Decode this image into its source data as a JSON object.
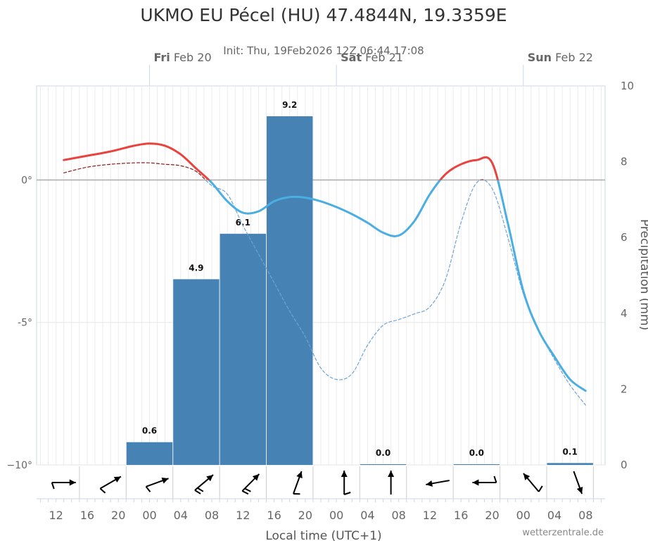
{
  "chart_data": {
    "type": "bar+line",
    "title": "UKMO EU Pécel (HU) 47.4844N, 19.3359E",
    "subtitle": "Init: Thu, 19Feb2026 12Z 06:44 17:08",
    "xlabel": "Local time (UTC+1)",
    "ylabel_right": "Precipitation (mm)",
    "credit": "wetterzentrale.de",
    "colors": {
      "warm": "#e8433f",
      "cold": "#4aaee3",
      "dew_warm": "#8b1a1a",
      "dew_cold": "#6fa3d3",
      "bars": "#4682b4",
      "zero_line": "#aaaaaa"
    },
    "day_labels": [
      {
        "day": "Fri",
        "date": "Feb 20",
        "hour": 0
      },
      {
        "day": "Sat",
        "date": "Feb 21",
        "hour": 24
      },
      {
        "day": "Sun",
        "date": "Feb 22",
        "hour": 48
      }
    ],
    "x_ticks": [
      {
        "hour": -12,
        "label": "12"
      },
      {
        "hour": -8,
        "label": "16"
      },
      {
        "hour": -4,
        "label": "20"
      },
      {
        "hour": 0,
        "label": "00"
      },
      {
        "hour": 4,
        "label": "04"
      },
      {
        "hour": 8,
        "label": "08"
      },
      {
        "hour": 12,
        "label": "12"
      },
      {
        "hour": 16,
        "label": "16"
      },
      {
        "hour": 20,
        "label": "20"
      },
      {
        "hour": 24,
        "label": "00"
      },
      {
        "hour": 28,
        "label": "04"
      },
      {
        "hour": 32,
        "label": "08"
      },
      {
        "hour": 36,
        "label": "12"
      },
      {
        "hour": 40,
        "label": "16"
      },
      {
        "hour": 44,
        "label": "20"
      },
      {
        "hour": 48,
        "label": "00"
      },
      {
        "hour": 52,
        "label": "04"
      },
      {
        "hour": 56,
        "label": "08"
      }
    ],
    "y_left": {
      "range": [
        -10,
        3.3
      ],
      "ticks": [
        {
          "value": 0,
          "label": "0°"
        },
        {
          "value": -5,
          "label": "-5°"
        },
        {
          "value": -10,
          "label": "−10°"
        }
      ]
    },
    "y_right": {
      "range": [
        0,
        10
      ],
      "ticks": [
        "0",
        "2",
        "4",
        "6",
        "8",
        "10"
      ]
    },
    "x_range_hours": [
      -14.5,
      58.5
    ],
    "temperature": {
      "hours": [
        -11,
        -8,
        -5,
        -2,
        0,
        2,
        4,
        6,
        8,
        10,
        12,
        14,
        16,
        18,
        20,
        22,
        24,
        26,
        28,
        30,
        32,
        34,
        36,
        38,
        40,
        42,
        44,
        46,
        48,
        50,
        52,
        54,
        56
      ],
      "values": [
        0.7,
        0.85,
        1.0,
        1.2,
        1.28,
        1.2,
        0.9,
        0.4,
        -0.1,
        -0.75,
        -1.15,
        -1.1,
        -0.75,
        -0.6,
        -0.62,
        -0.75,
        -0.95,
        -1.2,
        -1.5,
        -1.85,
        -1.95,
        -1.45,
        -0.5,
        0.2,
        0.55,
        0.7,
        0.6,
        -1.5,
        -3.9,
        -5.3,
        -6.2,
        -7.0,
        -7.4
      ]
    },
    "dewpoint": {
      "hours": [
        -11,
        -8,
        -5,
        -2,
        0,
        2,
        4,
        6,
        8,
        10,
        12,
        14,
        16,
        18,
        20,
        22,
        24,
        26,
        28,
        30,
        32,
        34,
        36,
        38,
        40,
        42,
        44,
        46,
        48,
        50,
        52,
        54,
        56
      ],
      "values": [
        0.25,
        0.45,
        0.55,
        0.6,
        0.6,
        0.55,
        0.5,
        0.3,
        -0.2,
        -0.5,
        -1.6,
        -2.6,
        -3.6,
        -4.6,
        -5.5,
        -6.6,
        -7.0,
        -6.8,
        -5.8,
        -5.1,
        -4.9,
        -4.7,
        -4.45,
        -3.5,
        -1.5,
        -0.1,
        -0.3,
        -2.0,
        -4.0,
        -5.3,
        -6.3,
        -7.2,
        -7.9
      ]
    },
    "precipitation": [
      {
        "start": -3,
        "end": 3,
        "value": 0.6,
        "label": "0.6"
      },
      {
        "start": 3,
        "end": 9,
        "value": 4.9,
        "label": "4.9"
      },
      {
        "start": 9,
        "end": 15,
        "value": 6.1,
        "label": "6.1"
      },
      {
        "start": 15,
        "end": 21,
        "value": 9.2,
        "label": "9.2"
      },
      {
        "start": 27,
        "end": 33,
        "value": 0.0,
        "label": "0.0"
      },
      {
        "start": 39,
        "end": 45,
        "value": 0.0,
        "label": "0.0"
      },
      {
        "start": 51,
        "end": 57,
        "value": 0.05,
        "label": "0.1"
      }
    ],
    "wind": [
      {
        "hour": -11,
        "direction": 270,
        "barbs": 1
      },
      {
        "hour": -5,
        "direction": 240,
        "barbs": 1
      },
      {
        "hour": 1,
        "direction": 250,
        "barbs": 1
      },
      {
        "hour": 7,
        "direction": 230,
        "barbs": 2
      },
      {
        "hour": 13,
        "direction": 225,
        "barbs": 2
      },
      {
        "hour": 19,
        "direction": 200,
        "barbs": 1
      },
      {
        "hour": 25,
        "direction": 180,
        "barbs": 1
      },
      {
        "hour": 31,
        "direction": 180,
        "barbs": 0
      },
      {
        "hour": 37,
        "direction": 80,
        "barbs": 0
      },
      {
        "hour": 43,
        "direction": 90,
        "barbs": 1
      },
      {
        "hour": 49,
        "direction": 140,
        "barbs": 1
      },
      {
        "hour": 55,
        "direction": 340,
        "barbs": 0
      }
    ]
  }
}
